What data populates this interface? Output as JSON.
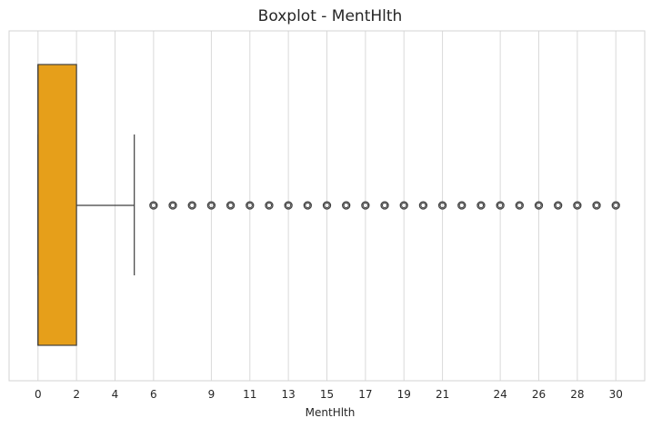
{
  "chart_data": {
    "type": "boxplot",
    "title": "Boxplot - MentHlth",
    "xlabel": "MentHlth",
    "ylabel": "",
    "xlim": [
      -1.5,
      31.5
    ],
    "xticks": [
      0,
      2,
      4,
      6,
      9,
      11,
      13,
      15,
      17,
      19,
      21,
      24,
      26,
      28,
      30
    ],
    "grid": true,
    "orientation": "horizontal",
    "box": {
      "min_whisker": 0,
      "q1": 0,
      "median": 0,
      "q3": 2,
      "max_whisker": 5,
      "fill_color": "#E69F1A",
      "edge_color": "#3F3F3F"
    },
    "outliers": [
      6,
      7,
      8,
      9,
      10,
      11,
      12,
      13,
      14,
      15,
      16,
      17,
      18,
      19,
      20,
      21,
      22,
      23,
      24,
      25,
      26,
      27,
      28,
      29,
      30
    ]
  }
}
